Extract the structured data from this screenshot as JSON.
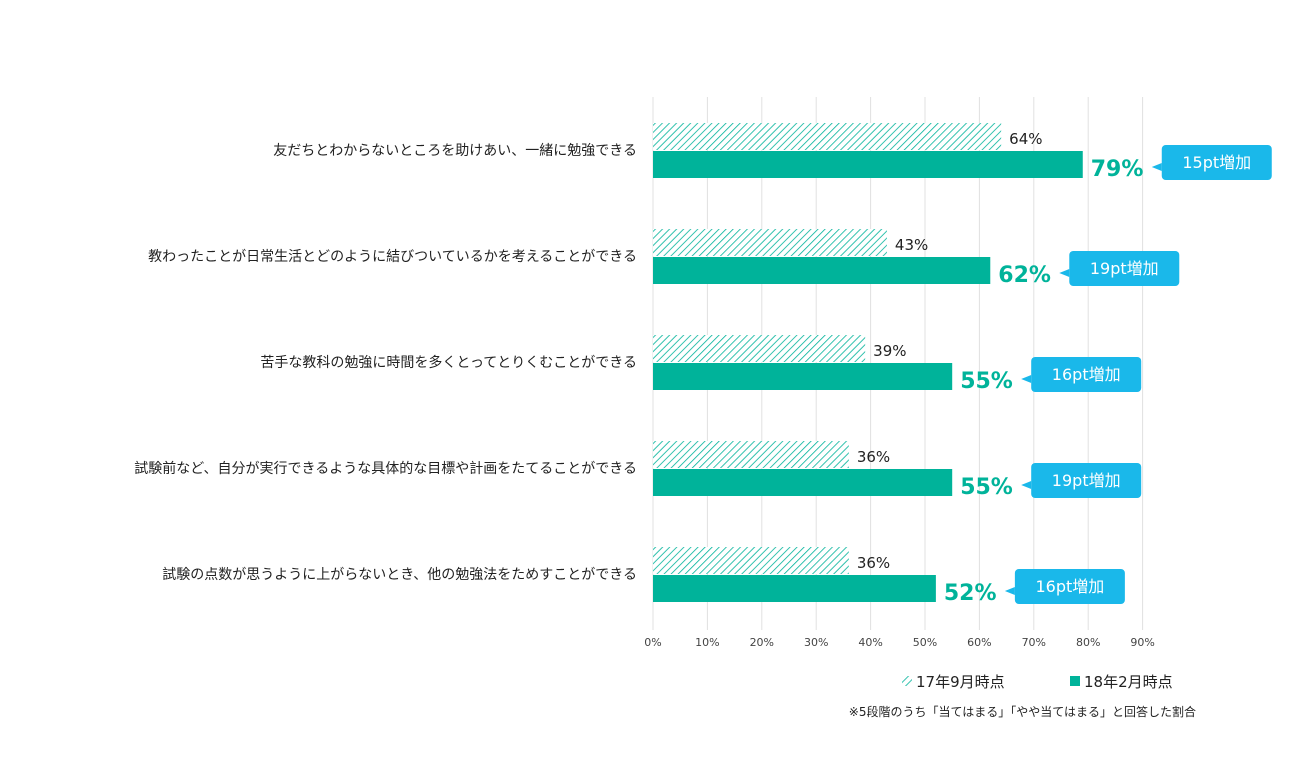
{
  "chart_data": {
    "type": "bar",
    "orientation": "horizontal",
    "categories": [
      "友だちとわからないところを助けあい、一緒に勉強できる",
      "教わったことが日常生活とどのように結びついているかを考えることができる",
      "苦手な教科の勉強に時間を多くとってとりくむことができる",
      "試験前など、自分が実行できるような具体的な目標や計画をたてることができる",
      "試験の点数が思うように上がらないとき、他の勉強法をためすことができる"
    ],
    "series": [
      {
        "name": "17年9月時点",
        "values": [
          64,
          43,
          39,
          36,
          36
        ],
        "labels": [
          "64%",
          "43%",
          "39%",
          "36%",
          "36%"
        ],
        "color": "#00b39a",
        "pattern": "hatched"
      },
      {
        "name": "18年2月時点",
        "values": [
          79,
          62,
          55,
          55,
          52
        ],
        "labels": [
          "79%",
          "62%",
          "55%",
          "55%",
          "52%"
        ],
        "color": "#00b39a",
        "pattern": "solid"
      }
    ],
    "annotations": [
      "15pt増加",
      "19pt増加",
      "16pt増加",
      "19pt増加",
      "16pt増加"
    ],
    "annotation_color": "#1ab8ea",
    "xticks": [
      "0%",
      "10%",
      "20%",
      "30%",
      "40%",
      "50%",
      "60%",
      "70%",
      "80%",
      "90%"
    ],
    "xlim": [
      0,
      90
    ],
    "grid": true,
    "legend_position": "bottom-right",
    "note": "※5段階のうち「当てはまる」「やや当てはまる」と回答した割合"
  }
}
